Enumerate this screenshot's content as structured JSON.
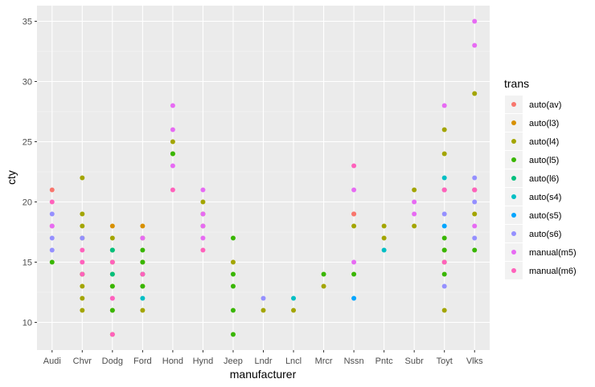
{
  "chart_data": {
    "type": "scatter",
    "title": "",
    "xlabel": "manufacturer",
    "ylabel": "cty",
    "ylim": [
      7.7,
      36.3
    ],
    "yticks": [
      10,
      15,
      20,
      25,
      30,
      35
    ],
    "grid": true,
    "legend_position": "right",
    "legend_title": "trans",
    "categories": [
      "Audi",
      "Chvr",
      "Dodg",
      "Ford",
      "Hond",
      "Hynd",
      "Jeep",
      "Lndr",
      "Lncl",
      "Mrcr",
      "Nssn",
      "Pntc",
      "Subr",
      "Toyt",
      "Vlks"
    ],
    "series": [
      {
        "name": "auto(av)",
        "color": "#F8766D",
        "points": [
          {
            "x": "Audi",
            "y": 21
          },
          {
            "x": "Audi",
            "y": 18
          },
          {
            "x": "Nssn",
            "y": 19
          },
          {
            "x": "Nssn",
            "y": 19
          },
          {
            "x": "Vlks",
            "y": 21
          }
        ]
      },
      {
        "name": "auto(l3)",
        "color": "#D89000",
        "points": [
          {
            "x": "Dodg",
            "y": 18
          },
          {
            "x": "Ford",
            "y": 18
          }
        ]
      },
      {
        "name": "auto(l4)",
        "color": "#A3A500",
        "points": [
          {
            "x": "Chvr",
            "y": 22
          },
          {
            "x": "Chvr",
            "y": 19
          },
          {
            "x": "Chvr",
            "y": 18
          },
          {
            "x": "Chvr",
            "y": 17
          },
          {
            "x": "Chvr",
            "y": 14
          },
          {
            "x": "Chvr",
            "y": 13
          },
          {
            "x": "Chvr",
            "y": 12
          },
          {
            "x": "Chvr",
            "y": 11
          },
          {
            "x": "Dodg",
            "y": 17
          },
          {
            "x": "Dodg",
            "y": 15
          },
          {
            "x": "Dodg",
            "y": 14
          },
          {
            "x": "Dodg",
            "y": 13
          },
          {
            "x": "Dodg",
            "y": 11
          },
          {
            "x": "Dodg",
            "y": 9
          },
          {
            "x": "Ford",
            "y": 17
          },
          {
            "x": "Ford",
            "y": 15
          },
          {
            "x": "Ford",
            "y": 14
          },
          {
            "x": "Ford",
            "y": 13
          },
          {
            "x": "Ford",
            "y": 11
          },
          {
            "x": "Hond",
            "y": 25
          },
          {
            "x": "Hond",
            "y": 24
          },
          {
            "x": "Hynd",
            "y": 20
          },
          {
            "x": "Hynd",
            "y": 19
          },
          {
            "x": "Hynd",
            "y": 18
          },
          {
            "x": "Jeep",
            "y": 15
          },
          {
            "x": "Lndr",
            "y": 11
          },
          {
            "x": "Lncl",
            "y": 11
          },
          {
            "x": "Mrcr",
            "y": 13
          },
          {
            "x": "Nssn",
            "y": 18
          },
          {
            "x": "Pntc",
            "y": 18
          },
          {
            "x": "Pntc",
            "y": 17
          },
          {
            "x": "Subr",
            "y": 21
          },
          {
            "x": "Subr",
            "y": 18
          },
          {
            "x": "Toyt",
            "y": 26
          },
          {
            "x": "Toyt",
            "y": 24
          },
          {
            "x": "Toyt",
            "y": 21
          },
          {
            "x": "Toyt",
            "y": 16
          },
          {
            "x": "Toyt",
            "y": 15
          },
          {
            "x": "Toyt",
            "y": 11
          },
          {
            "x": "Vlks",
            "y": 29
          },
          {
            "x": "Vlks",
            "y": 21
          },
          {
            "x": "Vlks",
            "y": 19
          }
        ]
      },
      {
        "name": "auto(l5)",
        "color": "#39B600",
        "points": [
          {
            "x": "Audi",
            "y": 15
          },
          {
            "x": "Chvr",
            "y": 14
          },
          {
            "x": "Dodg",
            "y": 16
          },
          {
            "x": "Dodg",
            "y": 13
          },
          {
            "x": "Dodg",
            "y": 11
          },
          {
            "x": "Ford",
            "y": 16
          },
          {
            "x": "Ford",
            "y": 15
          },
          {
            "x": "Ford",
            "y": 13
          },
          {
            "x": "Hond",
            "y": 24
          },
          {
            "x": "Jeep",
            "y": 17
          },
          {
            "x": "Jeep",
            "y": 14
          },
          {
            "x": "Jeep",
            "y": 13
          },
          {
            "x": "Jeep",
            "y": 11
          },
          {
            "x": "Jeep",
            "y": 9
          },
          {
            "x": "Mrcr",
            "y": 14
          },
          {
            "x": "Nssn",
            "y": 14
          },
          {
            "x": "Toyt",
            "y": 17
          },
          {
            "x": "Toyt",
            "y": 16
          },
          {
            "x": "Toyt",
            "y": 14
          },
          {
            "x": "Vlks",
            "y": 16
          }
        ]
      },
      {
        "name": "auto(l6)",
        "color": "#00BF7D",
        "points": [
          {
            "x": "Dodg",
            "y": 16
          },
          {
            "x": "Dodg",
            "y": 14
          },
          {
            "x": "Ford",
            "y": 14
          }
        ]
      },
      {
        "name": "auto(s4)",
        "color": "#00BFC4",
        "points": [
          {
            "x": "Ford",
            "y": 12
          },
          {
            "x": "Lncl",
            "y": 12
          },
          {
            "x": "Pntc",
            "y": 16
          },
          {
            "x": "Toyt",
            "y": 22
          }
        ]
      },
      {
        "name": "auto(s5)",
        "color": "#00A5FF",
        "points": [
          {
            "x": "Nssn",
            "y": 12
          },
          {
            "x": "Toyt",
            "y": 18
          }
        ]
      },
      {
        "name": "auto(s6)",
        "color": "#9590FF",
        "points": [
          {
            "x": "Audi",
            "y": 19
          },
          {
            "x": "Audi",
            "y": 17
          },
          {
            "x": "Audi",
            "y": 16
          },
          {
            "x": "Chvr",
            "y": 17
          },
          {
            "x": "Lndr",
            "y": 12
          },
          {
            "x": "Toyt",
            "y": 19
          },
          {
            "x": "Toyt",
            "y": 13
          },
          {
            "x": "Vlks",
            "y": 22
          },
          {
            "x": "Vlks",
            "y": 20
          },
          {
            "x": "Vlks",
            "y": 17
          }
        ]
      },
      {
        "name": "manual(m5)",
        "color": "#E76BF3",
        "points": [
          {
            "x": "Audi",
            "y": 18
          },
          {
            "x": "Dodg",
            "y": 12
          },
          {
            "x": "Ford",
            "y": 17
          },
          {
            "x": "Hond",
            "y": 28
          },
          {
            "x": "Hond",
            "y": 26
          },
          {
            "x": "Hond",
            "y": 23
          },
          {
            "x": "Hynd",
            "y": 21
          },
          {
            "x": "Hynd",
            "y": 19
          },
          {
            "x": "Hynd",
            "y": 18
          },
          {
            "x": "Hynd",
            "y": 17
          },
          {
            "x": "Nssn",
            "y": 21
          },
          {
            "x": "Nssn",
            "y": 15
          },
          {
            "x": "Subr",
            "y": 20
          },
          {
            "x": "Subr",
            "y": 19
          },
          {
            "x": "Toyt",
            "y": 28
          },
          {
            "x": "Toyt",
            "y": 21
          },
          {
            "x": "Vlks",
            "y": 35
          },
          {
            "x": "Vlks",
            "y": 33
          },
          {
            "x": "Vlks",
            "y": 21
          },
          {
            "x": "Vlks",
            "y": 18
          }
        ]
      },
      {
        "name": "manual(m6)",
        "color": "#FF62BC",
        "points": [
          {
            "x": "Audi",
            "y": 20
          },
          {
            "x": "Chvr",
            "y": 16
          },
          {
            "x": "Chvr",
            "y": 15
          },
          {
            "x": "Chvr",
            "y": 14
          },
          {
            "x": "Dodg",
            "y": 15
          },
          {
            "x": "Dodg",
            "y": 12
          },
          {
            "x": "Dodg",
            "y": 9
          },
          {
            "x": "Ford",
            "y": 14
          },
          {
            "x": "Hond",
            "y": 21
          },
          {
            "x": "Hynd",
            "y": 16
          },
          {
            "x": "Nssn",
            "y": 23
          },
          {
            "x": "Toyt",
            "y": 21
          },
          {
            "x": "Toyt",
            "y": 15
          },
          {
            "x": "Vlks",
            "y": 21
          }
        ]
      }
    ]
  }
}
